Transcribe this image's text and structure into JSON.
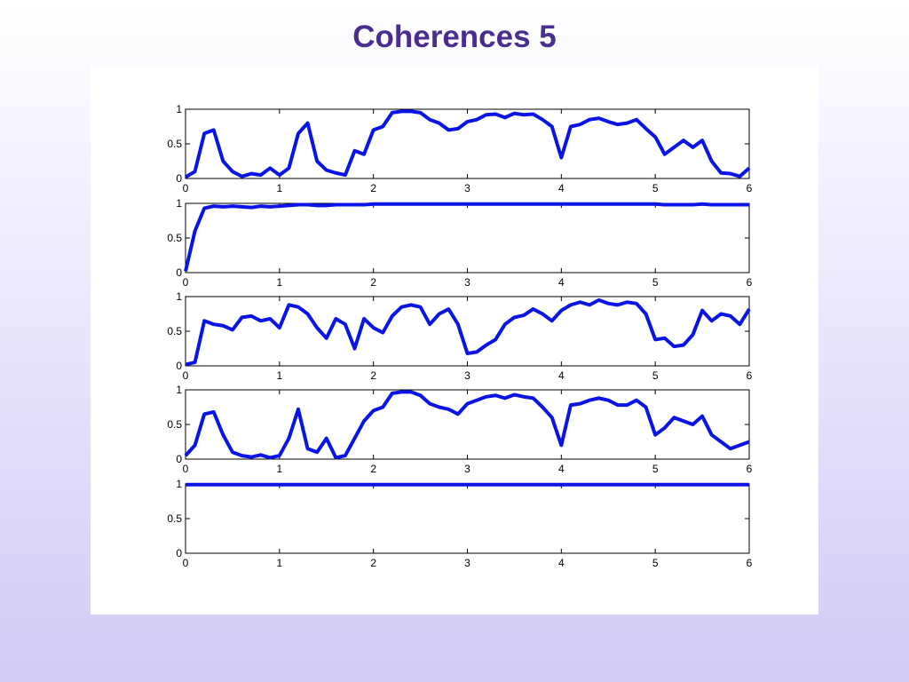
{
  "title": "Coherences 5",
  "chart_data": [
    {
      "type": "line",
      "xlim": [
        0,
        6
      ],
      "ylim": [
        0,
        1
      ],
      "xticks": [
        0,
        1,
        2,
        3,
        4,
        5,
        6
      ],
      "yticks": [
        0,
        0.5,
        1
      ],
      "x": [
        0,
        0.1,
        0.2,
        0.3,
        0.4,
        0.5,
        0.6,
        0.7,
        0.8,
        0.9,
        1,
        1.1,
        1.2,
        1.3,
        1.4,
        1.5,
        1.6,
        1.7,
        1.8,
        1.9,
        2,
        2.1,
        2.2,
        2.3,
        2.4,
        2.5,
        2.6,
        2.7,
        2.8,
        2.9,
        3,
        3.1,
        3.2,
        3.3,
        3.4,
        3.5,
        3.6,
        3.7,
        3.8,
        3.9,
        4,
        4.1,
        4.2,
        4.3,
        4.4,
        4.5,
        4.6,
        4.7,
        4.8,
        4.9,
        5,
        5.1,
        5.2,
        5.3,
        5.4,
        5.5,
        5.6,
        5.7,
        5.8,
        5.9,
        6
      ],
      "series": [
        {
          "color": "#0a14e6",
          "values": [
            0.02,
            0.1,
            0.65,
            0.7,
            0.25,
            0.1,
            0.03,
            0.07,
            0.05,
            0.15,
            0.05,
            0.15,
            0.65,
            0.8,
            0.25,
            0.12,
            0.08,
            0.05,
            0.4,
            0.35,
            0.7,
            0.75,
            0.95,
            0.97,
            0.97,
            0.95,
            0.85,
            0.8,
            0.7,
            0.72,
            0.82,
            0.85,
            0.92,
            0.93,
            0.88,
            0.94,
            0.92,
            0.93,
            0.85,
            0.75,
            0.3,
            0.75,
            0.78,
            0.85,
            0.87,
            0.82,
            0.78,
            0.8,
            0.85,
            0.72,
            0.6,
            0.35,
            0.45,
            0.55,
            0.45,
            0.55,
            0.25,
            0.08,
            0.07,
            0.03,
            0.15
          ]
        }
      ]
    },
    {
      "type": "line",
      "xlim": [
        0,
        6
      ],
      "ylim": [
        0,
        1
      ],
      "xticks": [
        0,
        1,
        2,
        3,
        4,
        5,
        6
      ],
      "yticks": [
        0,
        0.5,
        1
      ],
      "x": [
        0,
        0.1,
        0.2,
        0.3,
        0.4,
        0.5,
        0.6,
        0.7,
        0.8,
        0.9,
        1,
        1.1,
        1.2,
        1.3,
        1.4,
        1.5,
        1.6,
        1.7,
        1.8,
        1.9,
        2,
        2.1,
        2.2,
        2.3,
        2.4,
        2.5,
        2.6,
        2.7,
        2.8,
        2.9,
        3,
        3.1,
        3.2,
        3.3,
        3.4,
        3.5,
        3.6,
        3.7,
        3.8,
        3.9,
        4,
        4.1,
        4.2,
        4.3,
        4.4,
        4.5,
        4.6,
        4.7,
        4.8,
        4.9,
        5,
        5.1,
        5.2,
        5.3,
        5.4,
        5.5,
        5.6,
        5.7,
        5.8,
        5.9,
        6
      ],
      "series": [
        {
          "color": "#0a14e6",
          "values": [
            0.02,
            0.6,
            0.93,
            0.96,
            0.95,
            0.96,
            0.95,
            0.94,
            0.96,
            0.95,
            0.96,
            0.97,
            0.98,
            0.98,
            0.97,
            0.97,
            0.98,
            0.98,
            0.98,
            0.98,
            0.99,
            0.99,
            0.99,
            0.99,
            0.99,
            0.99,
            0.99,
            0.99,
            0.99,
            0.99,
            0.99,
            0.99,
            0.99,
            0.99,
            0.99,
            0.99,
            0.99,
            0.99,
            0.99,
            0.99,
            0.99,
            0.99,
            0.99,
            0.99,
            0.99,
            0.99,
            0.99,
            0.99,
            0.99,
            0.99,
            0.99,
            0.98,
            0.98,
            0.98,
            0.98,
            0.99,
            0.98,
            0.98,
            0.98,
            0.98,
            0.98
          ]
        }
      ]
    },
    {
      "type": "line",
      "xlim": [
        0,
        6
      ],
      "ylim": [
        0,
        1
      ],
      "xticks": [
        0,
        1,
        2,
        3,
        4,
        5,
        6
      ],
      "yticks": [
        0,
        0.5,
        1
      ],
      "x": [
        0,
        0.1,
        0.2,
        0.3,
        0.4,
        0.5,
        0.6,
        0.7,
        0.8,
        0.9,
        1,
        1.1,
        1.2,
        1.3,
        1.4,
        1.5,
        1.6,
        1.7,
        1.8,
        1.9,
        2,
        2.1,
        2.2,
        2.3,
        2.4,
        2.5,
        2.6,
        2.7,
        2.8,
        2.9,
        3,
        3.1,
        3.2,
        3.3,
        3.4,
        3.5,
        3.6,
        3.7,
        3.8,
        3.9,
        4,
        4.1,
        4.2,
        4.3,
        4.4,
        4.5,
        4.6,
        4.7,
        4.8,
        4.9,
        5,
        5.1,
        5.2,
        5.3,
        5.4,
        5.5,
        5.6,
        5.7,
        5.8,
        5.9,
        6
      ],
      "series": [
        {
          "color": "#0a14e6",
          "values": [
            0.02,
            0.05,
            0.65,
            0.6,
            0.58,
            0.52,
            0.7,
            0.72,
            0.65,
            0.68,
            0.55,
            0.88,
            0.85,
            0.75,
            0.55,
            0.4,
            0.68,
            0.6,
            0.25,
            0.68,
            0.55,
            0.48,
            0.72,
            0.85,
            0.88,
            0.85,
            0.6,
            0.75,
            0.82,
            0.6,
            0.18,
            0.2,
            0.3,
            0.38,
            0.6,
            0.7,
            0.73,
            0.82,
            0.75,
            0.65,
            0.8,
            0.88,
            0.92,
            0.88,
            0.95,
            0.9,
            0.88,
            0.92,
            0.9,
            0.75,
            0.38,
            0.4,
            0.28,
            0.3,
            0.45,
            0.8,
            0.65,
            0.75,
            0.72,
            0.6,
            0.82
          ]
        }
      ]
    },
    {
      "type": "line",
      "xlim": [
        0,
        6
      ],
      "ylim": [
        0,
        1
      ],
      "xticks": [
        0,
        1,
        2,
        3,
        4,
        5,
        6
      ],
      "yticks": [
        0,
        0.5,
        1
      ],
      "x": [
        0,
        0.1,
        0.2,
        0.3,
        0.4,
        0.5,
        0.6,
        0.7,
        0.8,
        0.9,
        1,
        1.1,
        1.2,
        1.3,
        1.4,
        1.5,
        1.6,
        1.7,
        1.8,
        1.9,
        2,
        2.1,
        2.2,
        2.3,
        2.4,
        2.5,
        2.6,
        2.7,
        2.8,
        2.9,
        3,
        3.1,
        3.2,
        3.3,
        3.4,
        3.5,
        3.6,
        3.7,
        3.8,
        3.9,
        4,
        4.1,
        4.2,
        4.3,
        4.4,
        4.5,
        4.6,
        4.7,
        4.8,
        4.9,
        5,
        5.1,
        5.2,
        5.3,
        5.4,
        5.5,
        5.6,
        5.7,
        5.8,
        5.9,
        6
      ],
      "series": [
        {
          "color": "#0a14e6",
          "values": [
            0.05,
            0.2,
            0.65,
            0.68,
            0.35,
            0.1,
            0.05,
            0.03,
            0.06,
            0.02,
            0.05,
            0.3,
            0.72,
            0.15,
            0.1,
            0.3,
            0.02,
            0.05,
            0.3,
            0.55,
            0.7,
            0.75,
            0.95,
            0.97,
            0.97,
            0.92,
            0.8,
            0.75,
            0.72,
            0.65,
            0.8,
            0.85,
            0.9,
            0.92,
            0.88,
            0.93,
            0.9,
            0.88,
            0.75,
            0.6,
            0.2,
            0.78,
            0.8,
            0.85,
            0.88,
            0.85,
            0.78,
            0.78,
            0.85,
            0.75,
            0.35,
            0.45,
            0.6,
            0.55,
            0.5,
            0.62,
            0.35,
            0.25,
            0.15,
            0.2,
            0.25
          ]
        }
      ]
    },
    {
      "type": "line",
      "xlim": [
        0,
        6
      ],
      "ylim": [
        0,
        1
      ],
      "xticks": [
        0,
        1,
        2,
        3,
        4,
        5,
        6
      ],
      "yticks": [
        0,
        0.5,
        1
      ],
      "x": [
        0,
        0.5,
        1,
        1.5,
        2,
        2.5,
        3,
        3.5,
        4,
        4.5,
        5,
        5.5,
        6
      ],
      "series": [
        {
          "color": "#0a14e6",
          "values": [
            0.99,
            0.99,
            0.99,
            0.99,
            0.99,
            0.99,
            0.99,
            0.99,
            0.99,
            0.99,
            0.99,
            0.99,
            0.99
          ]
        }
      ]
    }
  ]
}
